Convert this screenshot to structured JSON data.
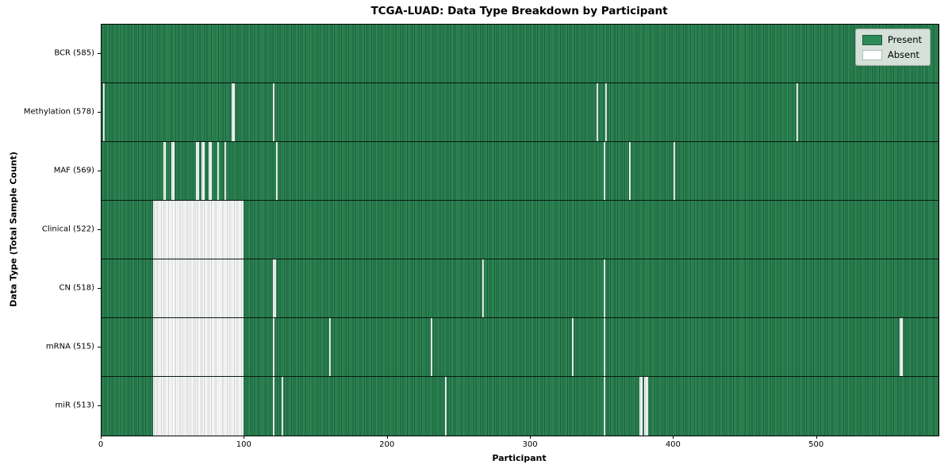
{
  "title": "TCGA-LUAD: Data Type Breakdown by Participant",
  "axes": {
    "x_label": "Participant",
    "y_label": "Data Type (Total Sample Count)",
    "x_ticks": [
      0,
      100,
      200,
      300,
      400,
      500
    ]
  },
  "legend": {
    "items": [
      {
        "label": "Present",
        "color": "#2e8b57",
        "edge": "#1c5b39"
      },
      {
        "label": "Absent",
        "color": "#ffffff",
        "edge": "#b5b9b5"
      }
    ]
  },
  "colors": {
    "present": "#2e8b57",
    "present_edge": "#1c5b39",
    "absent": "#ffffff",
    "absent_edge": "#c8ccc8",
    "plot_border": "#000000"
  },
  "chart_data": {
    "type": "heatmap",
    "title": "TCGA-LUAD: Data Type Breakdown by Participant",
    "xlabel": "Participant",
    "ylabel": "Data Type (Total Sample Count)",
    "n_participants": 585,
    "x_range": [
      0,
      585
    ],
    "legend_position": "upper right",
    "value_encoding": {
      "present": "green",
      "absent": "white"
    },
    "rows": [
      {
        "label": "BCR (585)",
        "data_type": "BCR",
        "present_count": 585,
        "absent_count": 0,
        "absent_ranges": []
      },
      {
        "label": "Methylation (578)",
        "data_type": "Methylation",
        "present_count": 578,
        "absent_count": 7,
        "absent_ranges": [
          [
            1,
            1
          ],
          [
            91,
            92
          ],
          [
            120,
            120
          ],
          [
            346,
            346
          ],
          [
            352,
            352
          ],
          [
            486,
            486
          ]
        ]
      },
      {
        "label": "MAF (569)",
        "data_type": "MAF",
        "present_count": 569,
        "absent_count": 16,
        "absent_ranges": [
          [
            43,
            44
          ],
          [
            49,
            50
          ],
          [
            66,
            67
          ],
          [
            70,
            71
          ],
          [
            75,
            76
          ],
          [
            81,
            81
          ],
          [
            86,
            86
          ],
          [
            122,
            122
          ],
          [
            351,
            351
          ],
          [
            369,
            369
          ],
          [
            400,
            400
          ]
        ]
      },
      {
        "label": "Clinical (522)",
        "data_type": "Clinical",
        "present_count": 522,
        "absent_count": 63,
        "absent_ranges": [
          [
            36,
            98
          ]
        ]
      },
      {
        "label": "CN (518)",
        "data_type": "CN",
        "present_count": 518,
        "absent_count": 67,
        "absent_ranges": [
          [
            36,
            98
          ],
          [
            120,
            121
          ],
          [
            266,
            266
          ],
          [
            351,
            351
          ]
        ]
      },
      {
        "label": "mRNA (515)",
        "data_type": "mRNA",
        "present_count": 515,
        "absent_count": 70,
        "absent_ranges": [
          [
            36,
            98
          ],
          [
            120,
            120
          ],
          [
            159,
            159
          ],
          [
            230,
            230
          ],
          [
            329,
            329
          ],
          [
            351,
            351
          ],
          [
            558,
            559
          ]
        ]
      },
      {
        "label": "miR (513)",
        "data_type": "miR",
        "present_count": 513,
        "absent_count": 72,
        "absent_ranges": [
          [
            36,
            98
          ],
          [
            120,
            120
          ],
          [
            126,
            126
          ],
          [
            240,
            240
          ],
          [
            351,
            351
          ],
          [
            376,
            377
          ],
          [
            379,
            381
          ]
        ]
      }
    ]
  }
}
